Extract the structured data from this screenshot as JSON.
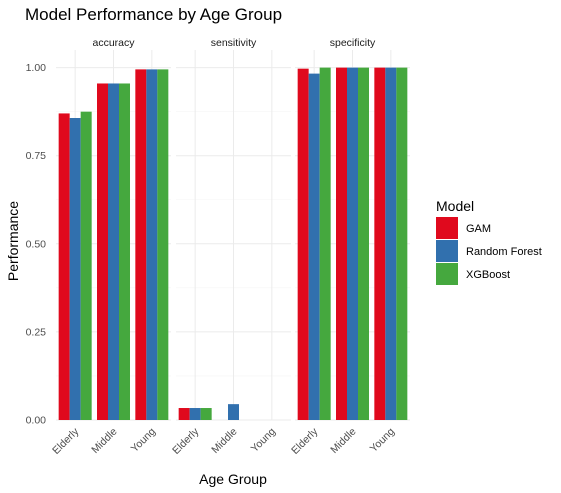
{
  "chart_data": {
    "type": "bar",
    "title": "Model Performance by Age Group",
    "xlabel": "Age Group",
    "ylabel": "Performance",
    "ylim": [
      0,
      1.05
    ],
    "yticks": [
      0,
      0.25,
      0.5,
      0.75,
      1.0
    ],
    "ytick_labels": [
      "0.00",
      "0.25",
      "0.50",
      "0.75",
      "1.00"
    ],
    "categories": [
      "Elderly",
      "Middle",
      "Young"
    ],
    "grid": true,
    "legend": {
      "title": "Model",
      "position": "right"
    },
    "series_colors": [
      "#e0091d",
      "#3170ae",
      "#45a83e"
    ],
    "facets": [
      {
        "label": "accuracy",
        "series": [
          {
            "name": "GAM",
            "values": [
              0.87,
              0.955,
              0.995
            ]
          },
          {
            "name": "Random Forest",
            "values": [
              0.857,
              0.955,
              0.995
            ]
          },
          {
            "name": "XGBoost",
            "values": [
              0.875,
              0.955,
              0.995
            ]
          }
        ]
      },
      {
        "label": "sensitivity",
        "series": [
          {
            "name": "GAM",
            "values": [
              0.034,
              0.0,
              0.0
            ]
          },
          {
            "name": "Random Forest",
            "values": [
              0.034,
              0.045,
              0.0
            ]
          },
          {
            "name": "XGBoost",
            "values": [
              0.034,
              0.0,
              0.0
            ]
          }
        ]
      },
      {
        "label": "specificity",
        "series": [
          {
            "name": "GAM",
            "values": [
              0.997,
              1.0,
              1.0
            ]
          },
          {
            "name": "Random Forest",
            "values": [
              0.983,
              1.0,
              1.0
            ]
          },
          {
            "name": "XGBoost",
            "values": [
              1.0,
              1.0,
              1.0
            ]
          }
        ]
      }
    ]
  }
}
